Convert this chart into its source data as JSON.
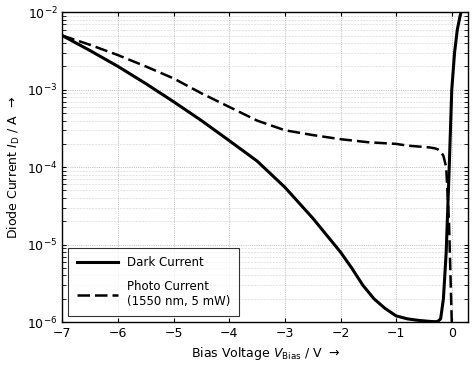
{
  "xlabel": "Bias Voltage $V_{\\mathrm{Bias}}$ / V  →",
  "ylabel": "Diode Current $I_{\\mathrm{D}}$ / A  →",
  "xlim": [
    -7,
    0.3
  ],
  "ylim": [
    1e-06,
    0.01
  ],
  "xticks": [
    -7,
    -6,
    -5,
    -4,
    -3,
    -2,
    -1,
    0
  ],
  "background_color": "#ffffff",
  "grid_color": "#888888",
  "legend_dark": "Dark Current",
  "legend_photo": "Photo Current\n(1550 nm, 5 mW)",
  "dark_color": "#000000",
  "photo_color": "#000000",
  "dark_x": [
    -7.0,
    -6.5,
    -6.0,
    -5.5,
    -5.0,
    -4.5,
    -4.0,
    -3.5,
    -3.0,
    -2.5,
    -2.0,
    -1.8,
    -1.6,
    -1.4,
    -1.2,
    -1.0,
    -0.8,
    -0.6,
    -0.4,
    -0.3,
    -0.25,
    -0.2,
    -0.15,
    -0.1,
    -0.05,
    0.0,
    0.05,
    0.1,
    0.15,
    0.2,
    0.25,
    0.3
  ],
  "dark_y": [
    0.005,
    0.0032,
    0.002,
    0.0012,
    0.0007,
    0.0004,
    0.00022,
    0.00012,
    5.5e-05,
    2.2e-05,
    8e-06,
    5e-06,
    3e-06,
    2e-06,
    1.5e-06,
    1.2e-06,
    1.1e-06,
    1.05e-06,
    1.02e-06,
    1.01e-06,
    1.02e-06,
    1.1e-06,
    2e-06,
    8e-06,
    8e-05,
    0.001,
    0.003,
    0.006,
    0.009,
    0.012,
    0.015,
    0.018
  ],
  "photo_x": [
    -7.0,
    -6.5,
    -6.0,
    -5.5,
    -5.0,
    -4.5,
    -4.0,
    -3.5,
    -3.0,
    -2.5,
    -2.0,
    -1.5,
    -1.0,
    -0.8,
    -0.6,
    -0.4,
    -0.3,
    -0.25,
    -0.2,
    -0.15,
    -0.1,
    -0.05,
    0.0
  ],
  "photo_y": [
    0.005,
    0.0038,
    0.0028,
    0.002,
    0.0014,
    0.0009,
    0.0006,
    0.0004,
    0.0003,
    0.00026,
    0.00023,
    0.00021,
    0.0002,
    0.00019,
    0.000185,
    0.00018,
    0.000175,
    0.00017,
    0.00016,
    0.00014,
    0.0001,
    2e-05,
    1e-06
  ]
}
